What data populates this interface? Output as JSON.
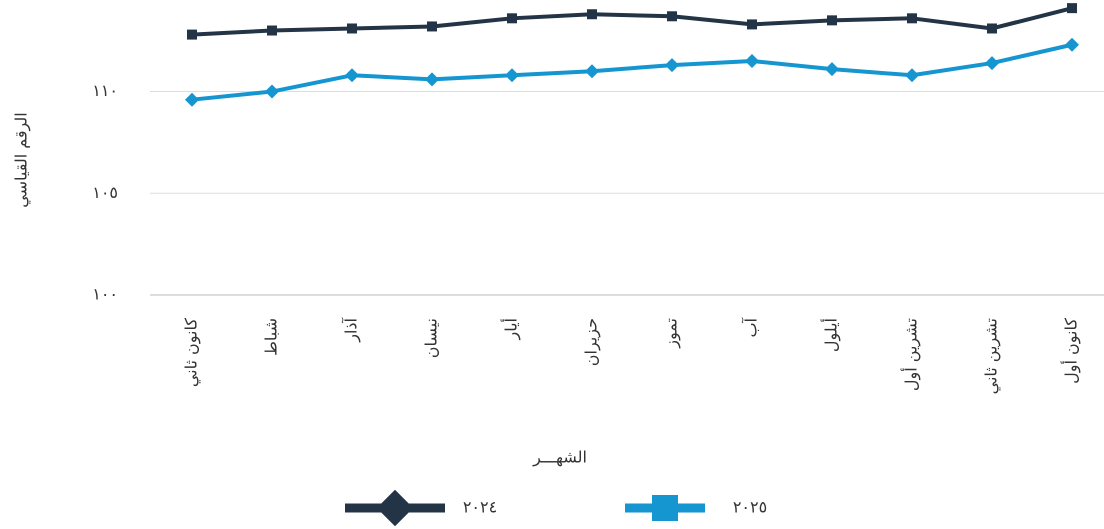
{
  "chart_data": {
    "type": "line",
    "y_label": "الرقم القياسي",
    "x_label": "الشهـــر",
    "categories": [
      "كانون ثاني",
      "شباط",
      "آذار",
      "نيسان",
      "أيار",
      "حزيران",
      "تموز",
      "آب",
      "أيلول",
      "تشرين أول",
      "تشرين ثاني",
      "كانون أول"
    ],
    "series": [
      {
        "name": "٢٠٢٤",
        "color": "#243447",
        "values": [
          112.8,
          113.0,
          113.1,
          113.2,
          113.6,
          113.8,
          113.7,
          113.3,
          113.5,
          113.6,
          113.1,
          114.1
        ]
      },
      {
        "name": "٢٠٢٥",
        "color": "#1596d0",
        "values": [
          109.6,
          110.0,
          110.8,
          110.6,
          110.8,
          111.0,
          111.3,
          111.5,
          111.1,
          110.8,
          111.4,
          112.3
        ]
      }
    ],
    "ylim": [
      100,
      114.5
    ],
    "yticks": [
      {
        "value": 100,
        "label": "١٠٠"
      },
      {
        "value": 105,
        "label": "١٠٥"
      },
      {
        "value": 110,
        "label": "١١٠"
      }
    ],
    "grid": true
  }
}
